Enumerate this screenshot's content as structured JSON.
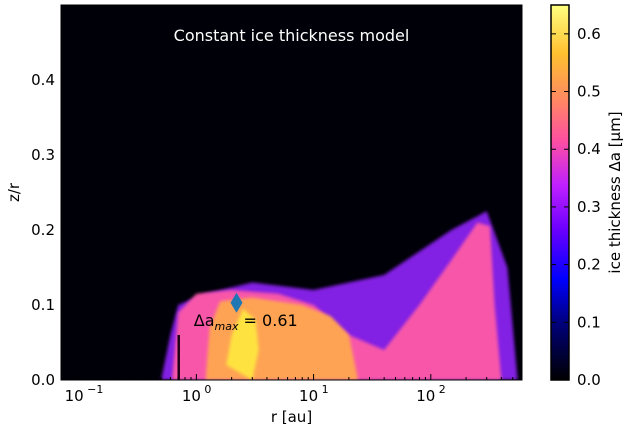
{
  "chart_data": {
    "type": "heatmap",
    "title": "Constant ice thickness model",
    "xlabel": "r [au]",
    "ylabel": "z/r",
    "xscale": "log",
    "xlim": [
      0.07,
      600
    ],
    "ylim": [
      0.0,
      0.5
    ],
    "x_ticks": [
      {
        "value": 0.1,
        "label": "10",
        "exp": "−1"
      },
      {
        "value": 1,
        "label": "10",
        "exp": "0"
      },
      {
        "value": 10,
        "label": "10",
        "exp": "1"
      },
      {
        "value": 100,
        "label": "10",
        "exp": "2"
      }
    ],
    "y_ticks": [
      "0.0",
      "0.1",
      "0.2",
      "0.3",
      "0.4"
    ],
    "y_tick_values": [
      0.0,
      0.1,
      0.2,
      0.3,
      0.4
    ],
    "colorbar": {
      "label": "ice thickness Δa [μm]",
      "colormap": "gnuplot2",
      "range": [
        0.0,
        0.65
      ],
      "ticks": [
        "0.0",
        "0.1",
        "0.2",
        "0.3",
        "0.4",
        "0.5",
        "0.6"
      ],
      "tick_values": [
        0.0,
        0.1,
        0.2,
        0.3,
        0.4,
        0.5,
        0.6
      ]
    },
    "annotation": {
      "text": "Δa",
      "subscript": "max",
      "suffix": " = 0.61",
      "marker": {
        "r": 2.2,
        "z_over_r": 0.103,
        "shape": "diamond",
        "color": "#1f77b4"
      }
    },
    "background_color": "#000008",
    "regions": [
      {
        "name": "outer-envelope",
        "value": 0.33,
        "color": "#8a22f0",
        "outline": [
          [
            0.5,
            0.0
          ],
          [
            0.6,
            0.06
          ],
          [
            0.7,
            0.1
          ],
          [
            1.2,
            0.115
          ],
          [
            3,
            0.13
          ],
          [
            10,
            0.12
          ],
          [
            40,
            0.14
          ],
          [
            150,
            0.2
          ],
          [
            300,
            0.225
          ],
          [
            450,
            0.15
          ],
          [
            550,
            0.0
          ]
        ]
      },
      {
        "name": "pink-region",
        "value": 0.4,
        "color": "#ff5aa6",
        "outline": [
          [
            0.62,
            0.0
          ],
          [
            0.7,
            0.09
          ],
          [
            1.0,
            0.115
          ],
          [
            2,
            0.12
          ],
          [
            5,
            0.115
          ],
          [
            10,
            0.1
          ],
          [
            20,
            0.06
          ],
          [
            40,
            0.04
          ],
          [
            80,
            0.1
          ],
          [
            150,
            0.16
          ],
          [
            250,
            0.21
          ],
          [
            320,
            0.205
          ],
          [
            350,
            0.1
          ],
          [
            380,
            0.04
          ],
          [
            400,
            0.0
          ]
        ]
      },
      {
        "name": "orange-core",
        "value": 0.52,
        "color": "#ffa850",
        "outline": [
          [
            1.2,
            0.0
          ],
          [
            1.3,
            0.07
          ],
          [
            1.6,
            0.105
          ],
          [
            3,
            0.11
          ],
          [
            8,
            0.1
          ],
          [
            14,
            0.085
          ],
          [
            20,
            0.06
          ],
          [
            24,
            0.0
          ]
        ]
      },
      {
        "name": "yellow-spot",
        "value": 0.61,
        "color": "#ffe640",
        "outline": [
          [
            1.8,
            0.02
          ],
          [
            2.0,
            0.06
          ],
          [
            2.5,
            0.095
          ],
          [
            3.2,
            0.08
          ],
          [
            3.4,
            0.04
          ],
          [
            3.0,
            0.0
          ]
        ]
      }
    ]
  }
}
